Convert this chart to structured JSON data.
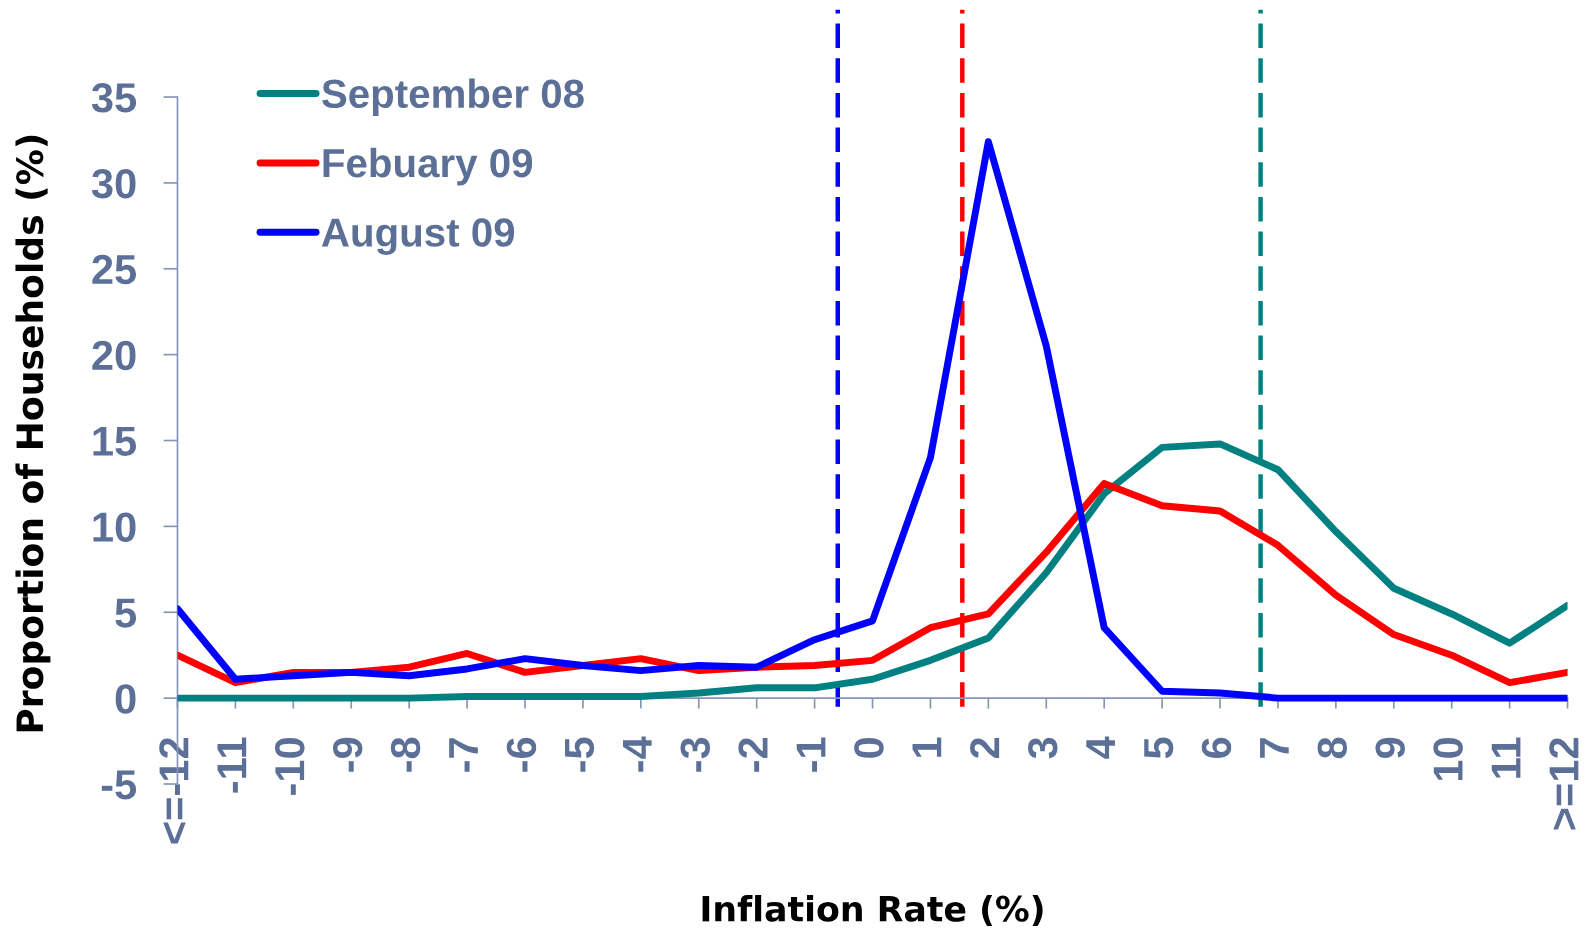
{
  "chart_data": {
    "type": "line",
    "xlabel": "Inflation Rate (%)",
    "ylabel": "Proportion of Households (%)",
    "x": [
      -12,
      -11,
      -10,
      -9,
      -8,
      -7,
      -6,
      -5,
      -4,
      -3,
      -2,
      -1,
      0,
      1,
      2,
      3,
      4,
      5,
      6,
      7,
      8,
      9,
      10,
      11,
      12
    ],
    "series": [
      {
        "name": "September 08",
        "color": "#008080",
        "values": [
          0,
          0,
          0,
          0,
          0,
          0.1,
          0.1,
          0.1,
          0.1,
          0.3,
          0.6,
          0.6,
          1.1,
          2.2,
          3.5,
          7.3,
          11.9,
          14.6,
          14.8,
          13.3,
          9.7,
          6.4,
          4.9,
          3.2,
          5.4
        ]
      },
      {
        "name": "Febuary 09",
        "color": "#ff0000",
        "values": [
          2.5,
          0.9,
          1.5,
          1.5,
          1.8,
          2.6,
          1.5,
          1.9,
          2.3,
          1.6,
          1.8,
          1.9,
          2.2,
          4.1,
          4.9,
          8.5,
          12.5,
          11.2,
          10.9,
          8.9,
          6.0,
          3.7,
          2.5,
          0.9,
          1.5
        ]
      },
      {
        "name": "August 09",
        "color": "#0000ff",
        "values": [
          5.2,
          1.1,
          1.3,
          1.5,
          1.3,
          1.7,
          2.3,
          1.9,
          1.6,
          1.9,
          1.8,
          3.4,
          4.5,
          14.0,
          32.4,
          20.5,
          4.1,
          0.4,
          0.3,
          0,
          0,
          0,
          0,
          0,
          0
        ]
      }
    ],
    "xlim": [
      -12,
      12
    ],
    "xticks": [
      {
        "value": -12,
        "label": "<=-12"
      },
      -11,
      -10,
      -9,
      -8,
      -7,
      -6,
      -5,
      -4,
      -3,
      -2,
      -1,
      0,
      1,
      2,
      3,
      4,
      5,
      6,
      7,
      8,
      9,
      10,
      11,
      {
        "value": 12,
        "label": ">=12"
      }
    ],
    "ylim": [
      -5,
      35
    ],
    "yticks": [
      -5,
      0,
      5,
      10,
      15,
      20,
      25,
      30,
      35
    ],
    "ref_lines": [
      {
        "axis": "x",
        "value": -0.6,
        "color": "#0000ff",
        "line_style": "dashed"
      },
      {
        "axis": "x",
        "value": 1.55,
        "color": "#ff0000",
        "line_style": "dashed"
      },
      {
        "axis": "x",
        "value": 6.7,
        "color": "#008080",
        "line_style": "dashed"
      }
    ],
    "legend": "top left"
  }
}
